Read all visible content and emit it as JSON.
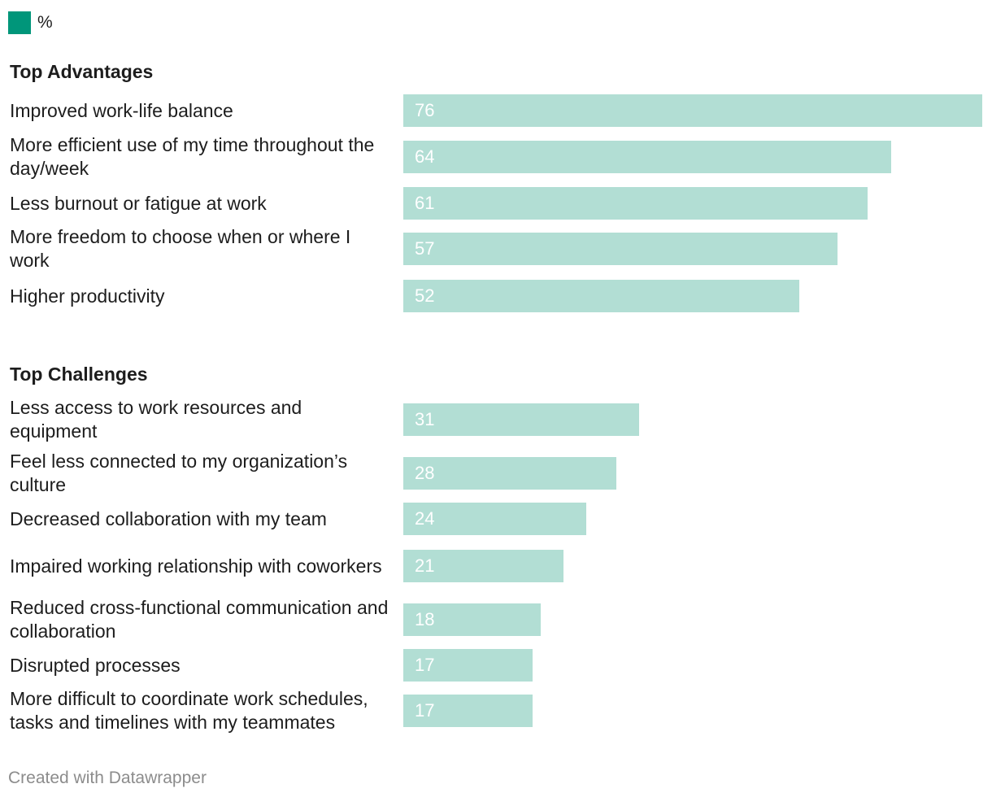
{
  "legend": {
    "label": "%",
    "color": "#00967a"
  },
  "colors": {
    "bar": "#b2ded4",
    "value_text": "#ffffff"
  },
  "footer": "Created with Datawrapper",
  "chart_data": {
    "type": "bar",
    "orientation": "horizontal",
    "xlim": [
      0,
      76
    ],
    "grid": false,
    "legend_position": "top-left",
    "series": [
      {
        "name": "%"
      }
    ],
    "groups": [
      {
        "title": "Top Advantages",
        "categories": [
          "Improved work-life balance",
          "More efficient use of my time throughout the day/week",
          "Less burnout or fatigue at work",
          "More freedom to choose when or where I work",
          "Higher productivity"
        ],
        "values": [
          76,
          64,
          61,
          57,
          52
        ]
      },
      {
        "title": "Top Challenges",
        "categories": [
          "Less access to work resources and equipment",
          "Feel less connected to my organization’s culture",
          "Decreased collaboration with my team",
          "Impaired working relationship with coworkers",
          "Reduced cross-functional communication and collaboration",
          "Disrupted processes",
          "More difficult to coordinate work schedules, tasks and timelines with my teammates"
        ],
        "values": [
          31,
          28,
          24,
          21,
          18,
          17,
          17
        ]
      }
    ]
  }
}
